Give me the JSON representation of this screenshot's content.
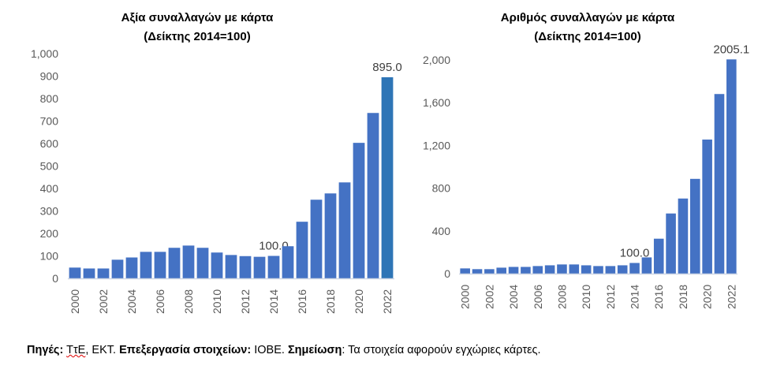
{
  "chart_data": [
    {
      "type": "bar",
      "title": [
        "Αξία συναλλαγών με κάρτα",
        "(Δείκτης 2014=100)"
      ],
      "categories": [
        "2000",
        "2001",
        "2002",
        "2003",
        "2004",
        "2005",
        "2006",
        "2007",
        "2008",
        "2009",
        "2010",
        "2011",
        "2012",
        "2013",
        "2014",
        "2015",
        "2016",
        "2017",
        "2018",
        "2019",
        "2020",
        "2021",
        "2022"
      ],
      "values": [
        48,
        44,
        44,
        83,
        93,
        118,
        118,
        136,
        146,
        136,
        115,
        104,
        99,
        96,
        100,
        143,
        252,
        350,
        378,
        427,
        603,
        736,
        895.0
      ],
      "x_tick_labels": [
        "2000",
        "2002",
        "2004",
        "2006",
        "2008",
        "2010",
        "2012",
        "2014",
        "2016",
        "2018",
        "2020",
        "2022"
      ],
      "y_ticks": [
        0,
        100,
        200,
        300,
        400,
        500,
        600,
        700,
        800,
        900,
        1000
      ],
      "y_tick_labels": [
        "0",
        "100",
        "200",
        "300",
        "400",
        "500",
        "600",
        "700",
        "800",
        "900",
        "1,000"
      ],
      "ylim": [
        0,
        1000
      ],
      "data_labels": [
        {
          "category": "2014",
          "text": "100.0"
        },
        {
          "category": "2022",
          "text": "895.0"
        }
      ],
      "bar_color": "#4472C4",
      "highlight_color": "#2E75B6",
      "xlabel": "",
      "ylabel": "",
      "grid": false
    },
    {
      "type": "bar",
      "title": [
        "Αριθμός συναλλαγών με κάρτα",
        "(Δείκτης 2014=100)"
      ],
      "categories": [
        "2000",
        "2001",
        "2002",
        "2003",
        "2004",
        "2005",
        "2006",
        "2007",
        "2008",
        "2009",
        "2010",
        "2011",
        "2012",
        "2013",
        "2014",
        "2015",
        "2016",
        "2017",
        "2018",
        "2019",
        "2020",
        "2021",
        "2022"
      ],
      "values": [
        49,
        42,
        42,
        56,
        63,
        63,
        71,
        78,
        86,
        86,
        78,
        71,
        71,
        78,
        100,
        152,
        327,
        563,
        703,
        887,
        1255,
        1681,
        2005.1
      ],
      "x_tick_labels": [
        "2000",
        "2002",
        "2004",
        "2006",
        "2008",
        "2010",
        "2012",
        "2014",
        "2016",
        "2018",
        "2020",
        "2022"
      ],
      "y_ticks": [
        0,
        400,
        800,
        1200,
        1600,
        2000
      ],
      "y_tick_labels": [
        "0",
        "400",
        "800",
        "1,200",
        "1,600",
        "2,000"
      ],
      "ylim": [
        0,
        2000
      ],
      "data_labels": [
        {
          "category": "2014",
          "text": "100.0"
        },
        {
          "category": "2022",
          "text": "2005.1"
        }
      ],
      "bar_color": "#4472C4",
      "xlabel": "",
      "ylabel": "",
      "grid": false
    }
  ],
  "footer": {
    "sources_label": "Πηγές:",
    "sources_first": "ΤτΕ",
    "sources_rest": ", ΕΚΤ.",
    "processing_label": "Επεξεργασία στοιχείων:",
    "processing_value": "ΙΟΒΕ.",
    "note_label": "Σημείωση",
    "note_value": ": Τα στοιχεία αφορούν εγχώριες κάρτες."
  }
}
